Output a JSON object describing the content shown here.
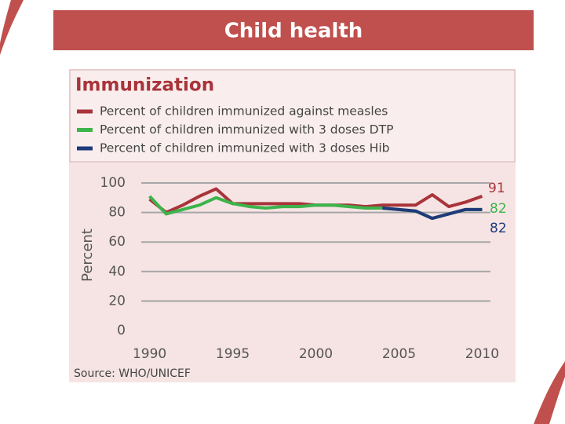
{
  "slide_title": "Child health",
  "chart_data": {
    "type": "line",
    "title": "Immunization",
    "y_label": "Percent",
    "source": "Source: WHO/UNICEF",
    "x": [
      1990,
      1991,
      1992,
      1993,
      1994,
      1995,
      1996,
      1997,
      1998,
      1999,
      2000,
      2001,
      2002,
      2003,
      2004,
      2005,
      2006,
      2007,
      2008,
      2009,
      2010
    ],
    "xlim": [
      1989.5,
      2010.5
    ],
    "xticks": [
      1990,
      1995,
      2000,
      2005,
      2010
    ],
    "ylim": [
      0,
      100
    ],
    "yticks": [
      0,
      20,
      40,
      60,
      80,
      100
    ],
    "grid": true,
    "series": [
      {
        "name": "Percent of children immunized against measles",
        "color": "#a8343a",
        "values": [
          89,
          80,
          85,
          91,
          96,
          86,
          86,
          86,
          86,
          86,
          85,
          85,
          85,
          84,
          85,
          85,
          85,
          92,
          84,
          87,
          91
        ]
      },
      {
        "name": "Percent of children immunized with 3 doses DTP",
        "color": "#3cb44b",
        "values": [
          91,
          79,
          82,
          85,
          90,
          86,
          84,
          83,
          84,
          84,
          85,
          85,
          84,
          83,
          83,
          82,
          81,
          76,
          79,
          82,
          82
        ]
      },
      {
        "name": "Percent of children immunized with 3 doses Hib",
        "color": "#1f3a7a",
        "values": [
          null,
          null,
          null,
          null,
          null,
          null,
          null,
          null,
          null,
          null,
          null,
          null,
          null,
          null,
          83,
          82,
          81,
          76,
          79,
          82,
          82
        ]
      }
    ]
  }
}
